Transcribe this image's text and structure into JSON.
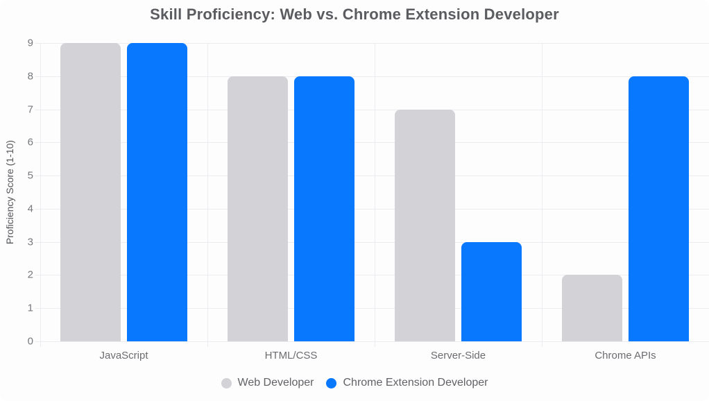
{
  "chart_data": {
    "type": "bar",
    "title": "Skill Proficiency: Web vs. Chrome Extension Developer",
    "categories": [
      "JavaScript",
      "HTML/CSS",
      "Server-Side",
      "Chrome APIs"
    ],
    "series": [
      {
        "name": "Web Developer",
        "color": "#d2d2d7",
        "values": [
          9,
          8,
          7,
          2
        ]
      },
      {
        "name": "Chrome Extension Developer",
        "color": "#0878ff",
        "values": [
          9,
          8,
          3,
          8
        ]
      }
    ],
    "xlabel": "",
    "ylabel": "Proficiency Score (1-10)",
    "ylim": [
      0,
      9
    ],
    "ytick_step": 1,
    "yticks": [
      0,
      1,
      2,
      3,
      4,
      5,
      6,
      7,
      8,
      9
    ],
    "grid": true,
    "legend_position": "bottom",
    "colors": {
      "background": "#fdfdfd",
      "gridline": "#ececf0",
      "title_text": "#5b5c60",
      "tick_text": "#77787c",
      "category_text": "#6b6c70",
      "legend_text": "#616266"
    }
  }
}
